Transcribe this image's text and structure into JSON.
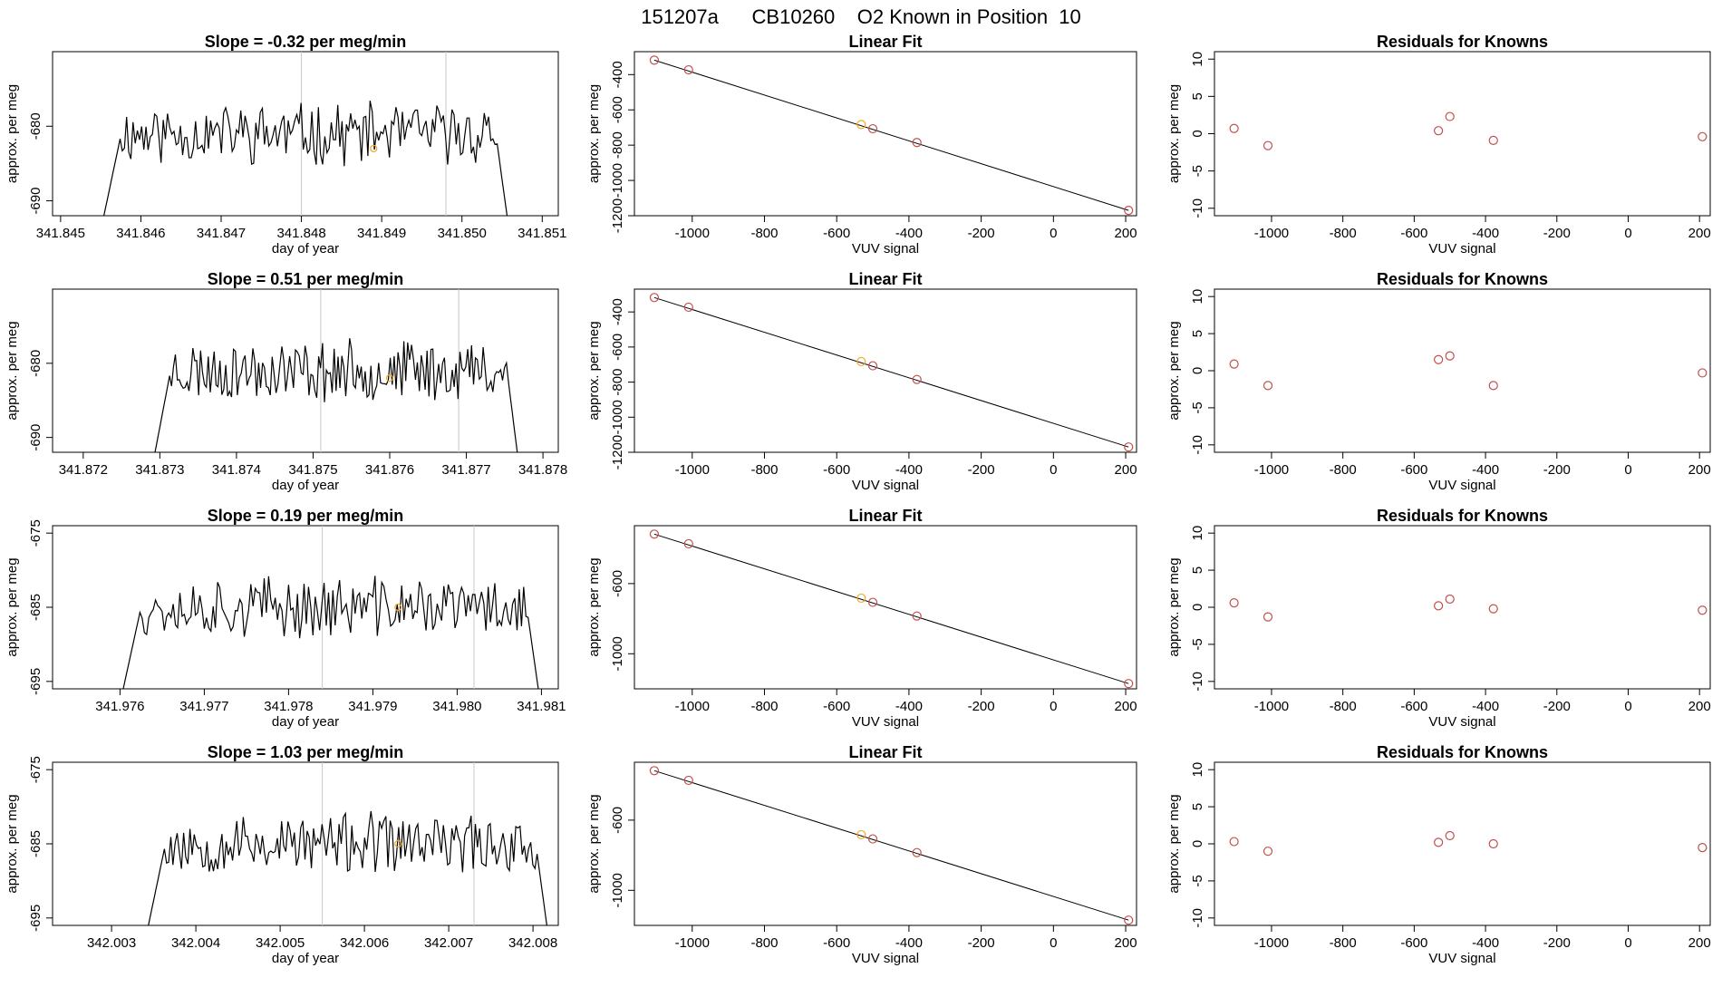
{
  "figure_title": "151207a      CB10260    O2 Known in Position  10",
  "colors": {
    "line": "#000000",
    "axis": "#000000",
    "known_point": "#c0504d",
    "highlight_point": "#f5a623",
    "guide": "#c8c8c8"
  },
  "chart_data": [
    {
      "type": "line",
      "panel": "time-series-1",
      "title": "Slope =  -0.32  per meg/min",
      "xlabel": "day of year",
      "ylabel": "approx. per meg",
      "xlim": [
        341.8449,
        341.8512
      ],
      "ylim": [
        -692,
        -670
      ],
      "xticks": [
        341.845,
        341.846,
        341.847,
        341.848,
        341.849,
        341.85,
        341.851
      ],
      "xtick_labels": [
        "341.845",
        "341.846",
        "341.847",
        "341.848",
        "341.849",
        "341.850",
        "341.851"
      ],
      "yticks": [
        -690,
        -680
      ],
      "ytick_labels": [
        "-690",
        "-680"
      ],
      "start": 341.8455,
      "end": 341.8506,
      "guides": [
        341.848,
        341.8498
      ],
      "highlight": {
        "x": 341.8489,
        "y": -683
      },
      "seed": 11
    },
    {
      "type": "scatter",
      "panel": "linear-fit-1",
      "title": "Linear Fit",
      "xlabel": "VUV signal",
      "ylabel": "approx. per meg",
      "xlim": [
        -1160,
        230
      ],
      "ylim": [
        -1200,
        -270
      ],
      "xticks": [
        -1000,
        -800,
        -600,
        -400,
        -200,
        0,
        200
      ],
      "xtick_labels": [
        "-1000",
        "-800",
        "-600",
        "-400",
        "-200",
        "0",
        "200"
      ],
      "yticks": [
        -1200,
        -1000,
        -800,
        -600,
        -400
      ],
      "ytick_labels": [
        "-1200",
        "-1000",
        "-800",
        "-600",
        "-400"
      ],
      "fit": [
        [
          -1105,
          -318
        ],
        [
          208,
          -1170
        ]
      ],
      "x": [
        -1105,
        -1010,
        -532,
        -500,
        -378,
        208
      ],
      "y": [
        -318,
        -373,
        -683,
        -707,
        -785,
        -1170
      ],
      "highlight_index": 2
    },
    {
      "type": "scatter",
      "panel": "residuals-1",
      "title": "Residuals for Knowns",
      "xlabel": "VUV signal",
      "ylabel": "approx. per meg",
      "xlim": [
        -1160,
        230
      ],
      "ylim": [
        -11,
        11
      ],
      "xticks": [
        -1000,
        -800,
        -600,
        -400,
        -200,
        0,
        200
      ],
      "xtick_labels": [
        "-1000",
        "-800",
        "-600",
        "-400",
        "-200",
        "0",
        "200"
      ],
      "yticks": [
        -10,
        -5,
        0,
        5,
        10
      ],
      "ytick_labels": [
        "-10",
        "-5",
        "0",
        "5",
        "10"
      ],
      "x": [
        -1105,
        -1010,
        -532,
        -500,
        -378,
        208
      ],
      "y": [
        0.7,
        -1.6,
        0.4,
        2.3,
        -0.9,
        -0.4
      ]
    },
    {
      "type": "line",
      "panel": "time-series-2",
      "title": "Slope =  0.51  per meg/min",
      "xlabel": "day of year",
      "ylabel": "approx. per meg",
      "xlim": [
        341.8716,
        341.8782
      ],
      "ylim": [
        -692,
        -670
      ],
      "xticks": [
        341.872,
        341.873,
        341.874,
        341.875,
        341.876,
        341.877,
        341.878
      ],
      "xtick_labels": [
        "341.872",
        "341.873",
        "341.874",
        "341.875",
        "341.876",
        "341.877",
        "341.878"
      ],
      "yticks": [
        -690,
        -680
      ],
      "ytick_labels": [
        "-690",
        "-680"
      ],
      "start": 341.8729,
      "end": 341.8777,
      "guides": [
        341.8751,
        341.8769
      ],
      "highlight": {
        "x": 341.876,
        "y": -682
      },
      "seed": 23
    },
    {
      "type": "scatter",
      "panel": "linear-fit-2",
      "title": "Linear Fit",
      "xlabel": "VUV signal",
      "ylabel": "approx. per meg",
      "xlim": [
        -1160,
        230
      ],
      "ylim": [
        -1200,
        -270
      ],
      "xticks": [
        -1000,
        -800,
        -600,
        -400,
        -200,
        0,
        200
      ],
      "xtick_labels": [
        "-1000",
        "-800",
        "-600",
        "-400",
        "-200",
        "0",
        "200"
      ],
      "yticks": [
        -1200,
        -1000,
        -800,
        -600,
        -400
      ],
      "ytick_labels": [
        "-1200",
        "-1000",
        "-800",
        "-600",
        "-400"
      ],
      "fit": [
        [
          -1105,
          -318
        ],
        [
          208,
          -1170
        ]
      ],
      "x": [
        -1105,
        -1010,
        -532,
        -500,
        -378,
        208
      ],
      "y": [
        -318,
        -373,
        -683,
        -707,
        -785,
        -1170
      ],
      "highlight_index": 2
    },
    {
      "type": "scatter",
      "panel": "residuals-2",
      "title": "Residuals for Knowns",
      "xlabel": "VUV signal",
      "ylabel": "approx. per meg",
      "xlim": [
        -1160,
        230
      ],
      "ylim": [
        -11,
        11
      ],
      "xticks": [
        -1000,
        -800,
        -600,
        -400,
        -200,
        0,
        200
      ],
      "xtick_labels": [
        "-1000",
        "-800",
        "-600",
        "-400",
        "-200",
        "0",
        "200"
      ],
      "yticks": [
        -10,
        -5,
        0,
        5,
        10
      ],
      "ytick_labels": [
        "-10",
        "-5",
        "0",
        "5",
        "10"
      ],
      "x": [
        -1105,
        -1010,
        -532,
        -500,
        -378,
        208
      ],
      "y": [
        0.9,
        -2.0,
        1.5,
        2.0,
        -2.0,
        -0.3
      ]
    },
    {
      "type": "line",
      "panel": "time-series-3",
      "title": "Slope =  0.19  per meg/min",
      "xlabel": "day of year",
      "ylabel": "approx. per meg",
      "xlim": [
        341.9752,
        341.9812
      ],
      "ylim": [
        -696,
        -674
      ],
      "xticks": [
        341.976,
        341.977,
        341.978,
        341.979,
        341.98,
        341.981
      ],
      "xtick_labels": [
        "341.976",
        "341.977",
        "341.978",
        "341.979",
        "341.980",
        "341.981"
      ],
      "yticks": [
        -695,
        -685,
        -675
      ],
      "ytick_labels": [
        "-695",
        "-685",
        "-675"
      ],
      "start": 341.976,
      "end": 341.981,
      "guides": [
        341.9784,
        341.9802
      ],
      "highlight": {
        "x": 341.9793,
        "y": -685
      },
      "seed": 37
    },
    {
      "type": "scatter",
      "panel": "linear-fit-3",
      "title": "Linear Fit",
      "xlabel": "VUV signal",
      "ylabel": "approx. per meg",
      "xlim": [
        -1160,
        230
      ],
      "ylim": [
        -1200,
        -270
      ],
      "xticks": [
        -1000,
        -800,
        -600,
        -400,
        -200,
        0,
        200
      ],
      "xtick_labels": [
        "-1000",
        "-800",
        "-600",
        "-400",
        "-200",
        "0",
        "200"
      ],
      "yticks": [
        -1000,
        -600
      ],
      "ytick_labels": [
        "-1000",
        "-600"
      ],
      "fit": [
        [
          -1105,
          -318
        ],
        [
          208,
          -1170
        ]
      ],
      "x": [
        -1105,
        -1010,
        -532,
        -500,
        -378,
        208
      ],
      "y": [
        -318,
        -373,
        -683,
        -707,
        -785,
        -1170
      ],
      "highlight_index": 2
    },
    {
      "type": "scatter",
      "panel": "residuals-3",
      "title": "Residuals for Knowns",
      "xlabel": "VUV signal",
      "ylabel": "approx. per meg",
      "xlim": [
        -1160,
        230
      ],
      "ylim": [
        -11,
        11
      ],
      "xticks": [
        -1000,
        -800,
        -600,
        -400,
        -200,
        0,
        200
      ],
      "xtick_labels": [
        "-1000",
        "-800",
        "-600",
        "-400",
        "-200",
        "0",
        "200"
      ],
      "yticks": [
        -10,
        -5,
        0,
        5,
        10
      ],
      "ytick_labels": [
        "-10",
        "-5",
        "0",
        "5",
        "10"
      ],
      "x": [
        -1105,
        -1010,
        -532,
        -500,
        -378,
        208
      ],
      "y": [
        0.6,
        -1.3,
        0.2,
        1.1,
        -0.2,
        -0.4
      ]
    },
    {
      "type": "line",
      "panel": "time-series-4",
      "title": "Slope =  1.03  per meg/min",
      "xlabel": "day of year",
      "ylabel": "approx. per meg",
      "xlim": [
        342.0023,
        342.0083
      ],
      "ylim": [
        -696,
        -674
      ],
      "xticks": [
        342.003,
        342.004,
        342.005,
        342.006,
        342.007,
        342.008
      ],
      "xtick_labels": [
        "342.003",
        "342.004",
        "342.005",
        "342.006",
        "342.007",
        "342.008"
      ],
      "yticks": [
        -695,
        -685,
        -675
      ],
      "ytick_labels": [
        "-695",
        "-685",
        "-675"
      ],
      "start": 342.0034,
      "end": 342.0082,
      "guides": [
        342.0055,
        342.0073
      ],
      "highlight": {
        "x": 342.0064,
        "y": -685
      },
      "seed": 53
    },
    {
      "type": "scatter",
      "panel": "linear-fit-4",
      "title": "Linear Fit",
      "xlabel": "VUV signal",
      "ylabel": "approx. per meg",
      "xlim": [
        -1160,
        230
      ],
      "ylim": [
        -1200,
        -270
      ],
      "xticks": [
        -1000,
        -800,
        -600,
        -400,
        -200,
        0,
        200
      ],
      "xtick_labels": [
        "-1000",
        "-800",
        "-600",
        "-400",
        "-200",
        "0",
        "200"
      ],
      "yticks": [
        -1000,
        -600
      ],
      "ytick_labels": [
        "-1000",
        "-600"
      ],
      "fit": [
        [
          -1105,
          -318
        ],
        [
          208,
          -1170
        ]
      ],
      "x": [
        -1105,
        -1010,
        -532,
        -500,
        -378,
        208
      ],
      "y": [
        -318,
        -373,
        -683,
        -707,
        -785,
        -1170
      ],
      "highlight_index": 2
    },
    {
      "type": "scatter",
      "panel": "residuals-4",
      "title": "Residuals for Knowns",
      "xlabel": "VUV signal",
      "ylabel": "approx. per meg",
      "xlim": [
        -1160,
        230
      ],
      "ylim": [
        -11,
        11
      ],
      "xticks": [
        -1000,
        -800,
        -600,
        -400,
        -200,
        0,
        200
      ],
      "xtick_labels": [
        "-1000",
        "-800",
        "-600",
        "-400",
        "-200",
        "0",
        "200"
      ],
      "yticks": [
        -10,
        -5,
        0,
        5,
        10
      ],
      "ytick_labels": [
        "-10",
        "-5",
        "0",
        "5",
        "10"
      ],
      "x": [
        -1105,
        -1010,
        -532,
        -500,
        -378,
        208
      ],
      "y": [
        0.3,
        -1.0,
        0.2,
        1.1,
        0.0,
        -0.5
      ]
    }
  ]
}
